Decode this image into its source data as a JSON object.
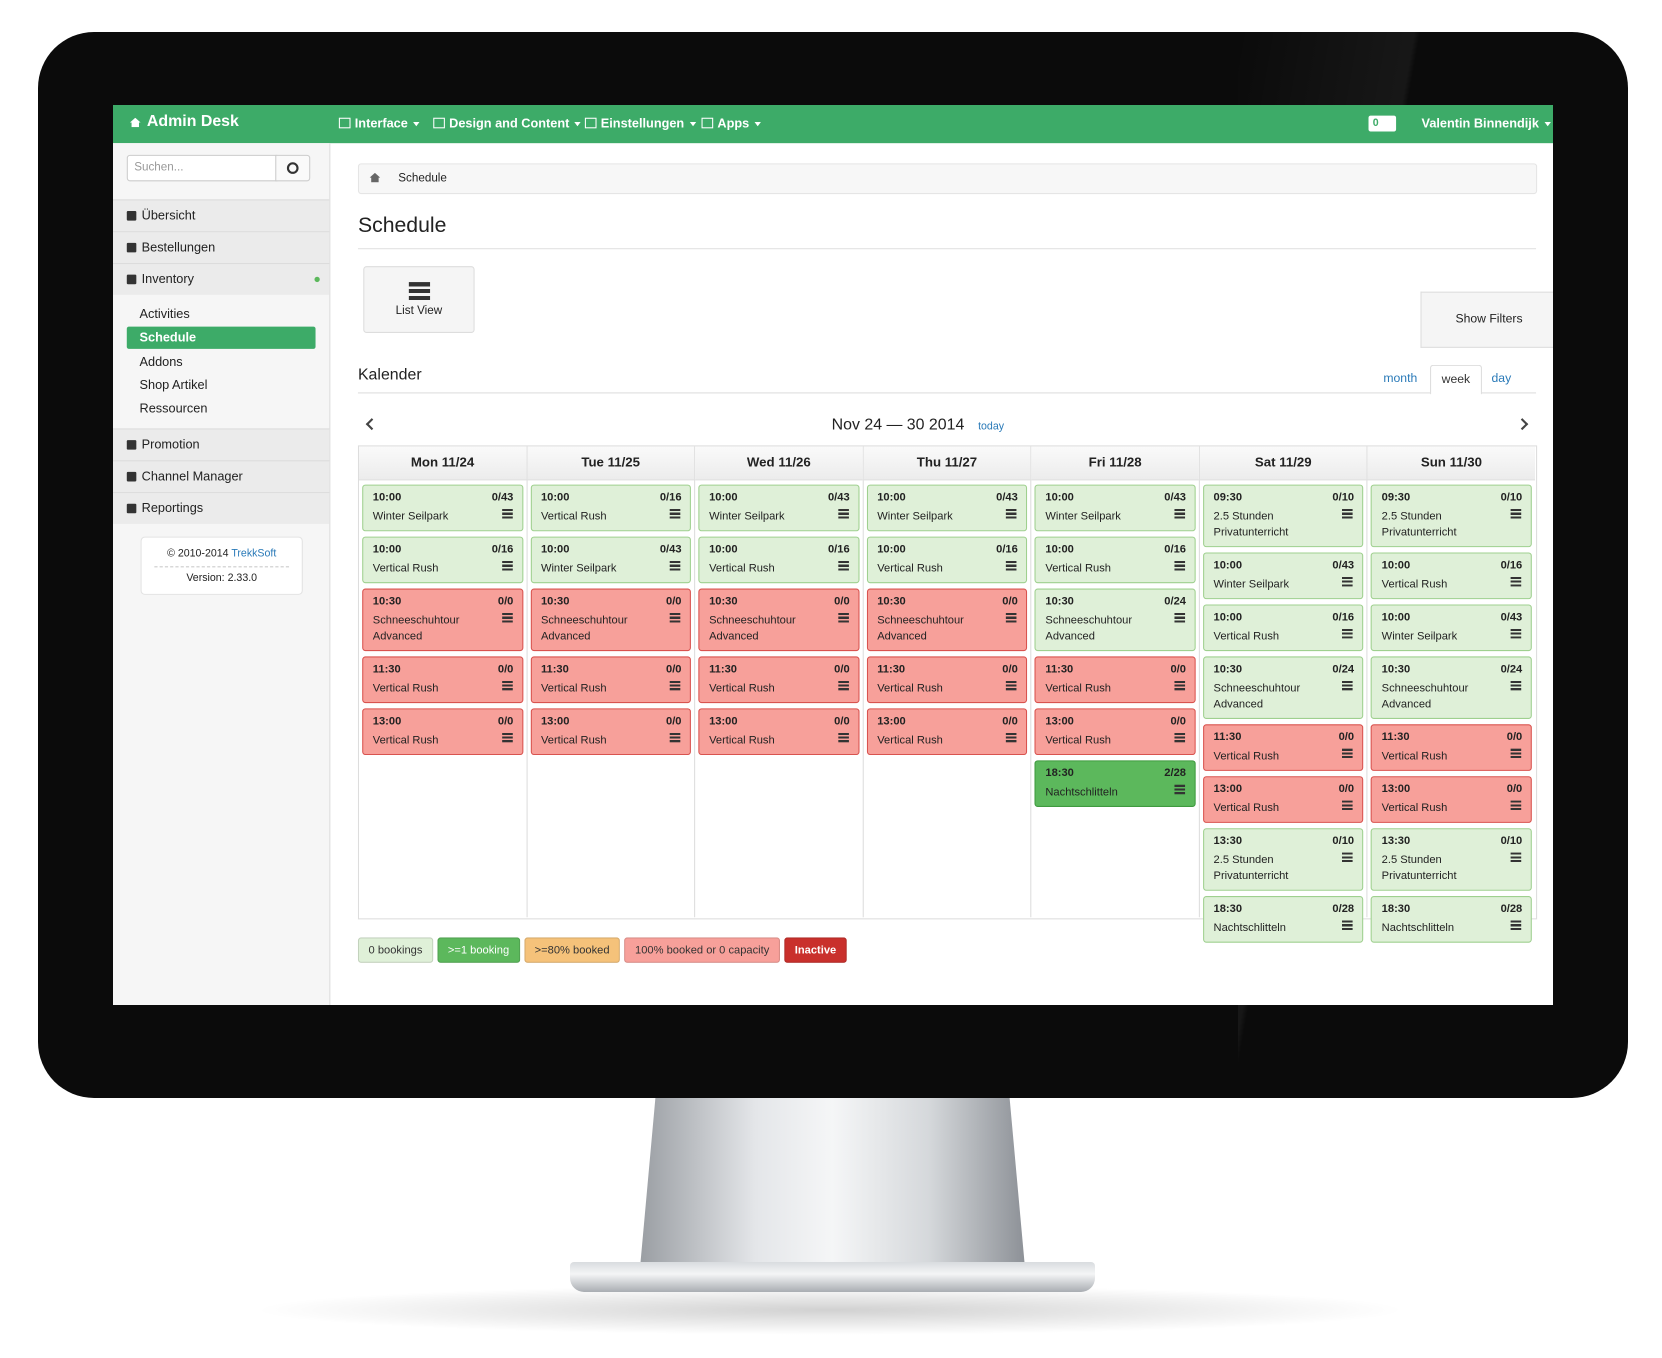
{
  "header": {
    "brand": "Admin Desk",
    "nav": [
      "Interface",
      "Design and Content",
      "Einstellungen",
      "Apps"
    ],
    "messages": "0",
    "user": "Valentin Binnendijk"
  },
  "sidebar": {
    "search_placeholder": "Suchen...",
    "menu": [
      "Übersicht",
      "Bestellungen",
      "Inventory"
    ],
    "submenu": [
      "Activities",
      "Schedule",
      "Addons",
      "Shop Artikel",
      "Ressourcen"
    ],
    "active_submenu": 1,
    "menu_more": [
      "Promotion",
      "Channel Manager",
      "Reportings"
    ],
    "copyright": "© 2010-2014",
    "company": "TrekkSoft",
    "version": "Version: 2.33.0"
  },
  "breadcrumb": "Schedule",
  "title": "Schedule",
  "list_view": "List View",
  "show_filters": "Show Filters",
  "calendar": {
    "title": "Kalender",
    "views": [
      "month",
      "week",
      "day"
    ],
    "active_view": 1,
    "range": "Nov 24 — 30 2014",
    "today": "today",
    "days": [
      {
        "label": "Mon 11/24",
        "events": [
          {
            "time": "10:00",
            "capacity": "0/43",
            "name": "Winter Seilpark",
            "color": "#dff0d8"
          },
          {
            "time": "10:00",
            "capacity": "0/16",
            "name": "Vertical Rush",
            "color": "#dff0d8"
          },
          {
            "time": "10:30",
            "capacity": "0/0",
            "name": "Schneeschuhtour Advanced",
            "color": "#f7a09a"
          },
          {
            "time": "11:30",
            "capacity": "0/0",
            "name": "Vertical Rush",
            "color": "#f7a09a"
          },
          {
            "time": "13:00",
            "capacity": "0/0",
            "name": "Vertical Rush",
            "color": "#f7a09a"
          }
        ]
      },
      {
        "label": "Tue 11/25",
        "events": [
          {
            "time": "10:00",
            "capacity": "0/16",
            "name": "Vertical Rush",
            "color": "#dff0d8"
          },
          {
            "time": "10:00",
            "capacity": "0/43",
            "name": "Winter Seilpark",
            "color": "#dff0d8"
          },
          {
            "time": "10:30",
            "capacity": "0/0",
            "name": "Schneeschuhtour Advanced",
            "color": "#f7a09a"
          },
          {
            "time": "11:30",
            "capacity": "0/0",
            "name": "Vertical Rush",
            "color": "#f7a09a"
          },
          {
            "time": "13:00",
            "capacity": "0/0",
            "name": "Vertical Rush",
            "color": "#f7a09a"
          }
        ]
      },
      {
        "label": "Wed 11/26",
        "events": [
          {
            "time": "10:00",
            "capacity": "0/43",
            "name": "Winter Seilpark",
            "color": "#dff0d8"
          },
          {
            "time": "10:00",
            "capacity": "0/16",
            "name": "Vertical Rush",
            "color": "#dff0d8"
          },
          {
            "time": "10:30",
            "capacity": "0/0",
            "name": "Schneeschuhtour Advanced",
            "color": "#f7a09a"
          },
          {
            "time": "11:30",
            "capacity": "0/0",
            "name": "Vertical Rush",
            "color": "#f7a09a"
          },
          {
            "time": "13:00",
            "capacity": "0/0",
            "name": "Vertical Rush",
            "color": "#f7a09a"
          }
        ]
      },
      {
        "label": "Thu 11/27",
        "events": [
          {
            "time": "10:00",
            "capacity": "0/43",
            "name": "Winter Seilpark",
            "color": "#dff0d8"
          },
          {
            "time": "10:00",
            "capacity": "0/16",
            "name": "Vertical Rush",
            "color": "#dff0d8"
          },
          {
            "time": "10:30",
            "capacity": "0/0",
            "name": "Schneeschuhtour Advanced",
            "color": "#f7a09a"
          },
          {
            "time": "11:30",
            "capacity": "0/0",
            "name": "Vertical Rush",
            "color": "#f7a09a"
          },
          {
            "time": "13:00",
            "capacity": "0/0",
            "name": "Vertical Rush",
            "color": "#f7a09a"
          }
        ]
      },
      {
        "label": "Fri 11/28",
        "events": [
          {
            "time": "10:00",
            "capacity": "0/43",
            "name": "Winter Seilpark",
            "color": "#dff0d8"
          },
          {
            "time": "10:00",
            "capacity": "0/16",
            "name": "Vertical Rush",
            "color": "#dff0d8"
          },
          {
            "time": "10:30",
            "capacity": "0/24",
            "name": "Schneeschuhtour Advanced",
            "color": "#dff0d8"
          },
          {
            "time": "11:30",
            "capacity": "0/0",
            "name": "Vertical Rush",
            "color": "#f7a09a"
          },
          {
            "time": "13:00",
            "capacity": "0/0",
            "name": "Vertical Rush",
            "color": "#f7a09a"
          },
          {
            "time": "18:30",
            "capacity": "2/28",
            "name": "Nachtschlitteln",
            "color": "#5cb85c"
          }
        ]
      },
      {
        "label": "Sat 11/29",
        "events": [
          {
            "time": "09:30",
            "capacity": "0/10",
            "name": "2.5 Stunden Privatunterricht",
            "color": "#dff0d8"
          },
          {
            "time": "10:00",
            "capacity": "0/43",
            "name": "Winter Seilpark",
            "color": "#dff0d8"
          },
          {
            "time": "10:00",
            "capacity": "0/16",
            "name": "Vertical Rush",
            "color": "#dff0d8"
          },
          {
            "time": "10:30",
            "capacity": "0/24",
            "name": "Schneeschuhtour Advanced",
            "color": "#dff0d8"
          },
          {
            "time": "11:30",
            "capacity": "0/0",
            "name": "Vertical Rush",
            "color": "#f7a09a"
          },
          {
            "time": "13:00",
            "capacity": "0/0",
            "name": "Vertical Rush",
            "color": "#f7a09a"
          },
          {
            "time": "13:30",
            "capacity": "0/10",
            "name": "2.5 Stunden Privatunterricht",
            "color": "#dff0d8"
          },
          {
            "time": "18:30",
            "capacity": "0/28",
            "name": "Nachtschlitteln",
            "color": "#dff0d8"
          }
        ]
      },
      {
        "label": "Sun 11/30",
        "events": [
          {
            "time": "09:30",
            "capacity": "0/10",
            "name": "2.5 Stunden Privatunterricht",
            "color": "#dff0d8"
          },
          {
            "time": "10:00",
            "capacity": "0/16",
            "name": "Vertical Rush",
            "color": "#dff0d8"
          },
          {
            "time": "10:00",
            "capacity": "0/43",
            "name": "Winter Seilpark",
            "color": "#dff0d8"
          },
          {
            "time": "10:30",
            "capacity": "0/24",
            "name": "Schneeschuhtour Advanced",
            "color": "#dff0d8"
          },
          {
            "time": "11:30",
            "capacity": "0/0",
            "name": "Vertical Rush",
            "color": "#f7a09a"
          },
          {
            "time": "13:00",
            "capacity": "0/0",
            "name": "Vertical Rush",
            "color": "#f7a09a"
          },
          {
            "time": "13:30",
            "capacity": "0/10",
            "name": "2.5 Stunden Privatunterricht",
            "color": "#dff0d8"
          },
          {
            "time": "18:30",
            "capacity": "0/28",
            "name": "Nachtschlitteln",
            "color": "#dff0d8"
          }
        ]
      }
    ]
  },
  "legend": [
    {
      "label": "0 bookings",
      "color": "#dff0d8"
    },
    {
      "label": ">=1 booking",
      "color": "#5cb85c"
    },
    {
      "label": ">=80% booked",
      "color": "#f5c27a"
    },
    {
      "label": "100% booked or 0 capacity",
      "color": "#f7a09a"
    },
    {
      "label": "Inactive",
      "color": "#c9302c"
    }
  ]
}
